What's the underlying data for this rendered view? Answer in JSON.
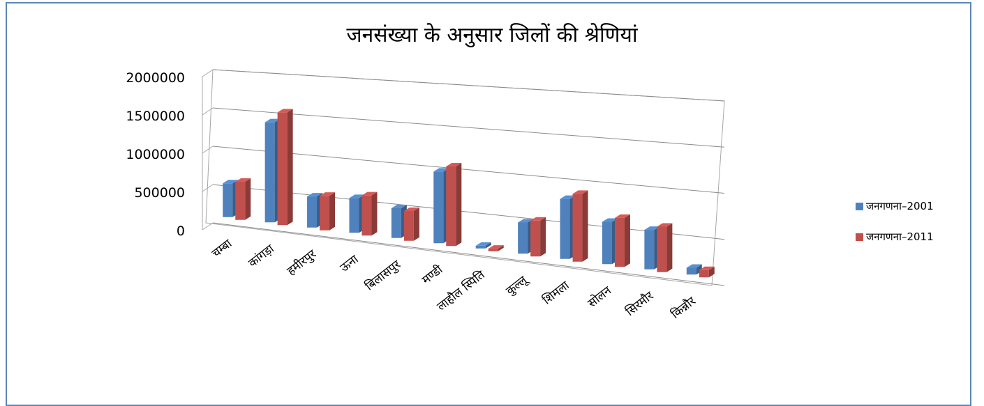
{
  "chart_data": {
    "type": "bar",
    "title": "जनसंख्या के अनुसार जिलों की श्रेणियां",
    "categories": [
      "चम्बा",
      "कांगड़ा",
      "हमीरपुर",
      "ऊना",
      "बिलासपुर",
      "मण्डी",
      "लाहौल स्पिति",
      "कुल्लू",
      "शिमला",
      "सोलन",
      "सिरमौर",
      "किन्नौर"
    ],
    "series": [
      {
        "name": "जनगणना–2001",
        "color": "#4f81bd",
        "values": [
          460000,
          1340000,
          410000,
          450000,
          380000,
          900000,
          33000,
          380000,
          720000,
          500000,
          460000,
          78000
        ]
      },
      {
        "name": "जनगणना–2011",
        "color": "#c0504d",
        "values": [
          520000,
          1510000,
          455000,
          520000,
          380000,
          1000000,
          31000,
          437000,
          814000,
          580000,
          530000,
          84000
        ]
      }
    ],
    "ylim": [
      0,
      2000000
    ],
    "yticks": [
      "0",
      "500000",
      "1000000",
      "1500000",
      "2000000"
    ],
    "grid": true,
    "legend_position": "right"
  }
}
